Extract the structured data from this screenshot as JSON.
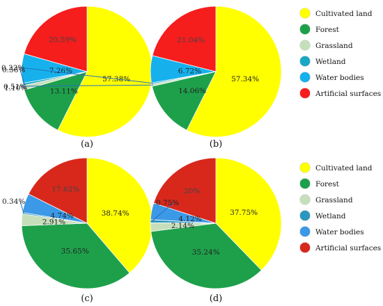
{
  "chart_data": [
    {
      "type": "pie",
      "panel_label": "(a)",
      "categories": [
        "Cultivated land",
        "Forest",
        "Grassland",
        "Wetland",
        "Water bodies",
        "Artificial surfaces"
      ],
      "values": [
        57.38,
        13.11,
        1.1,
        0.56,
        7.26,
        20.59
      ],
      "labels": [
        "57.38%",
        "13.11%",
        "1.10%",
        "0.56%",
        "7.26%",
        "20.59%"
      ],
      "colors": [
        "#ffff00",
        "#1ea04b",
        "#c6dfbb",
        "#1aa7c5",
        "#16b1ec",
        "#f61d1d"
      ]
    },
    {
      "type": "pie",
      "panel_label": "(b)",
      "categories": [
        "Cultivated land",
        "Forest",
        "Grassland",
        "Wetland",
        "Water bodies",
        "Artificial surfaces"
      ],
      "values": [
        57.34,
        14.06,
        0.51,
        0.33,
        6.72,
        21.04
      ],
      "labels": [
        "57.34%",
        "14.06%",
        "0.51%",
        "0.33%",
        "6.72%",
        "21.04%"
      ],
      "colors": [
        "#ffff00",
        "#1ea04b",
        "#c6dfbb",
        "#1aa7c5",
        "#16b1ec",
        "#f61d1d"
      ]
    },
    {
      "type": "pie",
      "panel_label": "(c)",
      "categories": [
        "Cultivated land",
        "Forest",
        "Grassland",
        "Wetland",
        "Water bodies",
        "Artificial surfaces"
      ],
      "values": [
        38.74,
        35.65,
        2.91,
        0.34,
        4.74,
        17.62
      ],
      "labels": [
        "38.74%",
        "35.65%",
        "2.91%",
        "0.34%",
        "4.74%",
        "17.62%"
      ],
      "colors": [
        "#ffff00",
        "#1ea04b",
        "#c6dfbb",
        "#2b97bf",
        "#3b99e8",
        "#d8281c"
      ]
    },
    {
      "type": "pie",
      "panel_label": "(d)",
      "categories": [
        "Cultivated land",
        "Forest",
        "Grassland",
        "Wetland",
        "Water bodies",
        "Artificial surfaces"
      ],
      "values": [
        37.75,
        35.24,
        2.14,
        0.75,
        4.12,
        20.0
      ],
      "labels": [
        "37.75%",
        "35.24%",
        "2.14%",
        "0.75%",
        "4.12%",
        "20%"
      ],
      "colors": [
        "#ffff00",
        "#1ea04b",
        "#c6dfbb",
        "#2b97bf",
        "#3b99e8",
        "#d8281c"
      ]
    }
  ],
  "legends": [
    {
      "entries": [
        "Cultivated land",
        "Forest",
        "Grassland",
        "Wetland",
        "Water bodies",
        "Artificial surfaces"
      ],
      "colors": [
        "#ffff00",
        "#1ea04b",
        "#c6dfbb",
        "#1aa7c5",
        "#16b1ec",
        "#f61d1d"
      ]
    },
    {
      "entries": [
        "Cultivated land",
        "Forest",
        "Grassland",
        "Wetland",
        "Water bodies",
        "Artificial surfaces"
      ],
      "colors": [
        "#ffff00",
        "#1ea04b",
        "#c6dfbb",
        "#2b97bf",
        "#3b99e8",
        "#d8281c"
      ]
    }
  ]
}
